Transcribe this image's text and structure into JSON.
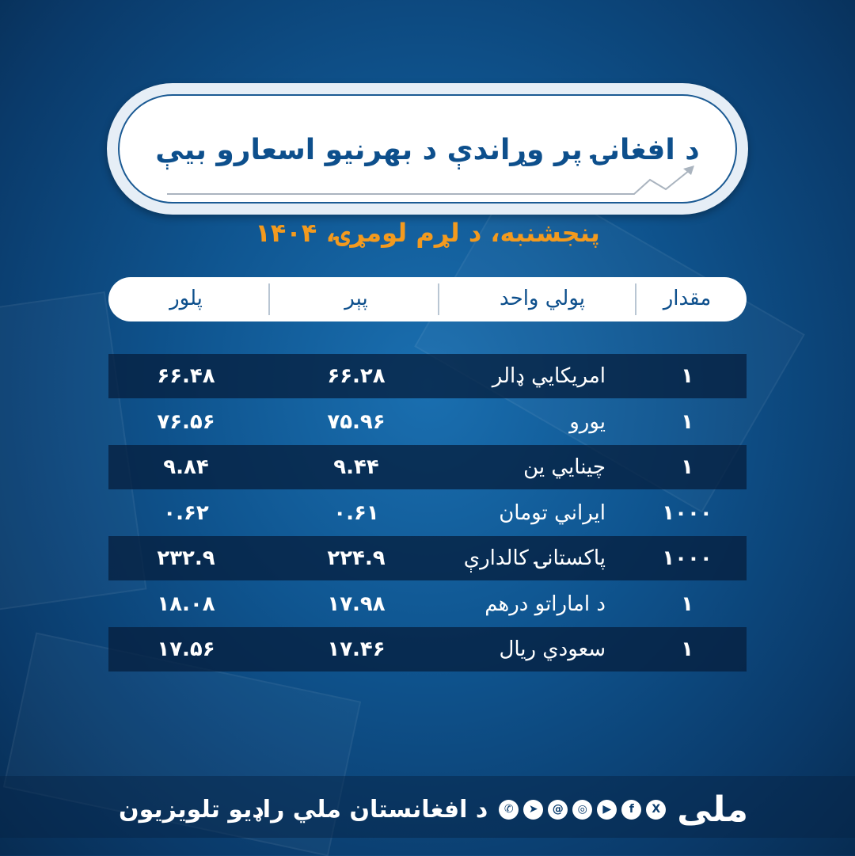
{
  "title": "د افغانۍ پر وړاندې د بهرنیو اسعارو بیې",
  "date": "پنجشنبه، د لړم لومړۍ، ۱۴۰۴",
  "columns": {
    "amount": "مقدار",
    "unit": "پولي واحد",
    "buy": "پېر",
    "sell": "پلور"
  },
  "rows": [
    {
      "amount": "۱",
      "unit": "امریکایي ډالر",
      "buy": "۶۶.۲۸",
      "sell": "۶۶.۴۸"
    },
    {
      "amount": "۱",
      "unit": "یورو",
      "buy": "۷۵.۹۶",
      "sell": "۷۶.۵۶"
    },
    {
      "amount": "۱",
      "unit": "چینایي ین",
      "buy": "۹.۴۴",
      "sell": "۹.۸۴"
    },
    {
      "amount": "۱۰۰۰",
      "unit": "ایراني تومان",
      "buy": "۰.۶۱",
      "sell": "۰.۶۲"
    },
    {
      "amount": "۱۰۰۰",
      "unit": "پاکستانۍ کالدارې",
      "buy": "۲۲۴.۹",
      "sell": "۲۳۲.۹"
    },
    {
      "amount": "۱",
      "unit": "د اماراتو درهم",
      "buy": "۱۷.۹۸",
      "sell": "۱۸.۰۸"
    },
    {
      "amount": "۱",
      "unit": "سعودي ریال",
      "buy": "۱۷.۴۶",
      "sell": "۱۷.۵۶"
    }
  ],
  "footer": {
    "text": "د افغانستان ملي راډیو تلویزیون",
    "logo": "ملی",
    "social": [
      "whatsapp-icon",
      "telegram-icon",
      "threads-icon",
      "instagram-icon",
      "youtube-icon",
      "facebook-icon",
      "x-icon"
    ]
  },
  "colors": {
    "accent": "#f39a1e",
    "brand": "#0d4f8c"
  }
}
